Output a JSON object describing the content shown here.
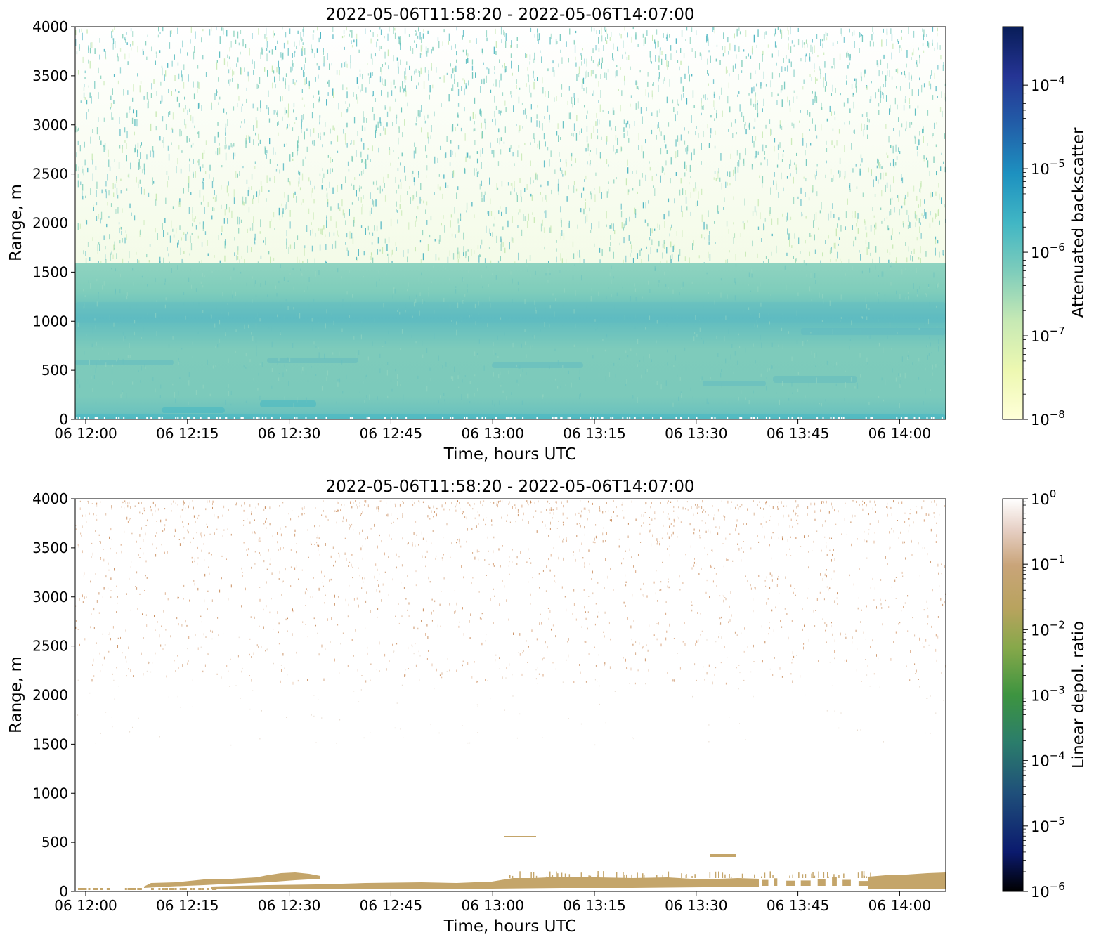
{
  "chart_data": [
    {
      "type": "heatmap",
      "title": "2022-05-06T11:58:20 - 2022-05-06T14:07:00",
      "xlabel": "Time, hours UTC",
      "ylabel": "Range, m",
      "x_range": [
        "2022-05-06T11:58:20",
        "2022-05-06T14:07:00"
      ],
      "ylim": [
        0,
        4000
      ],
      "x_ticks": [
        "06 12:00",
        "06 12:15",
        "06 12:30",
        "06 12:45",
        "06 13:00",
        "06 13:15",
        "06 13:30",
        "06 13:45",
        "06 14:00"
      ],
      "y_ticks": [
        "0",
        "500",
        "1000",
        "1500",
        "2000",
        "2500",
        "3000",
        "3500",
        "4000"
      ],
      "colorbar": {
        "label": "Attenuated backscatter",
        "scale": "log",
        "range": [
          1e-08,
          0.0005
        ],
        "ticks": [
          {
            "base": "10",
            "exp": "−8",
            "value": 1e-08
          },
          {
            "base": "10",
            "exp": "−7",
            "value": 1e-07
          },
          {
            "base": "10",
            "exp": "−6",
            "value": 1e-06
          },
          {
            "base": "10",
            "exp": "−5",
            "value": 1e-05
          },
          {
            "base": "10",
            "exp": "−4",
            "value": 0.0001
          }
        ],
        "colors": [
          "#ffffd9",
          "#edf8b1",
          "#c7e9b4",
          "#7fcdbb",
          "#41b6c4",
          "#1d91c0",
          "#225ea8",
          "#253494",
          "#081d58"
        ]
      },
      "features": [
        {
          "range_m": [
            0,
            1600
          ],
          "description_value": "~1e-6 boundary layer"
        },
        {
          "range_m": [
            1600,
            4000
          ],
          "description_value": "noisy ~1e-7 to 1e-6"
        }
      ]
    },
    {
      "type": "heatmap",
      "title": "2022-05-06T11:58:20 - 2022-05-06T14:07:00",
      "xlabel": "Time, hours UTC",
      "ylabel": "Range, m",
      "x_range": [
        "2022-05-06T11:58:20",
        "2022-05-06T14:07:00"
      ],
      "ylim": [
        0,
        4000
      ],
      "x_ticks": [
        "06 12:00",
        "06 12:15",
        "06 12:30",
        "06 12:45",
        "06 13:00",
        "06 13:15",
        "06 13:30",
        "06 13:45",
        "06 14:00"
      ],
      "y_ticks": [
        "0",
        "500",
        "1000",
        "1500",
        "2000",
        "2500",
        "3000",
        "3500",
        "4000"
      ],
      "colorbar": {
        "label": "Linear depol. ratio",
        "scale": "log",
        "range": [
          1e-06,
          1
        ],
        "ticks": [
          {
            "base": "10",
            "exp": "−6",
            "value": 1e-06
          },
          {
            "base": "10",
            "exp": "−5",
            "value": 1e-05
          },
          {
            "base": "10",
            "exp": "−4",
            "value": 0.0001
          },
          {
            "base": "10",
            "exp": "−3",
            "value": 0.001
          },
          {
            "base": "10",
            "exp": "−2",
            "value": 0.01
          },
          {
            "base": "10",
            "exp": "−1",
            "value": 0.1
          },
          {
            "base": "10",
            "exp": "0",
            "value": 1
          }
        ],
        "colors": [
          "#000000",
          "#1a237e",
          "#23607a",
          "#2e8b57",
          "#4a9e3d",
          "#9fb050",
          "#c4a56a",
          "#e8cfc0",
          "#ffffff"
        ]
      },
      "features": [
        {
          "range_m": [
            0,
            200
          ],
          "value": 0.06
        },
        {
          "range_m": [
            2700,
            4000
          ],
          "value": 0.1
        }
      ]
    }
  ]
}
